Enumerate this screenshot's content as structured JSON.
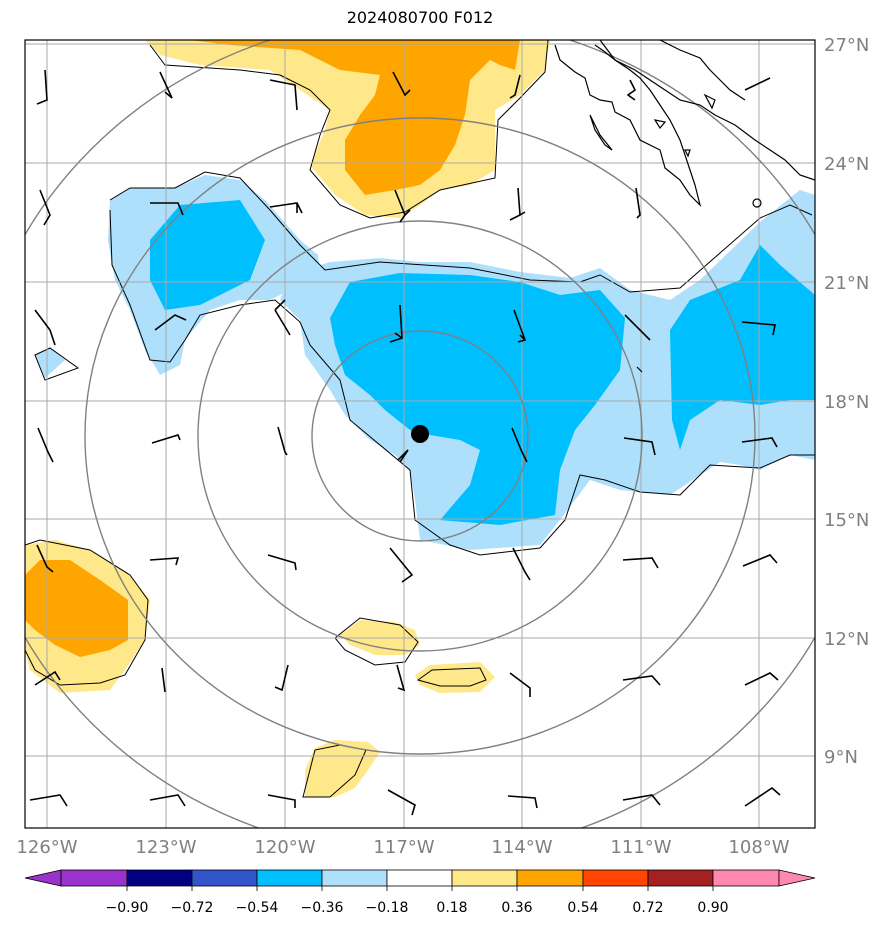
{
  "title": "2024080700 F012",
  "lat_axis": [
    "27°N",
    "24°N",
    "21°N",
    "18°N",
    "15°N",
    "12°N",
    "9°N"
  ],
  "lon_axis": [
    "126°W",
    "123°W",
    "120°W",
    "117°W",
    "114°W",
    "111°W",
    "108°W"
  ],
  "colorbar": {
    "ticks": [
      "−0.90",
      "−0.72",
      "−0.54",
      "−0.36",
      "−0.18",
      "0.18",
      "0.36",
      "0.54",
      "0.72",
      "0.90"
    ],
    "colors": [
      "#9933cc",
      "#000080",
      "#3355cc",
      "#00bfff",
      "#aee0fb",
      "#ffffff",
      "#ffe88a",
      "#ffa500",
      "#ff4500",
      "#a52020",
      "#ff88b0"
    ]
  },
  "storm_center": {
    "lon": "117.3°W",
    "lat": "17.2°N"
  }
}
